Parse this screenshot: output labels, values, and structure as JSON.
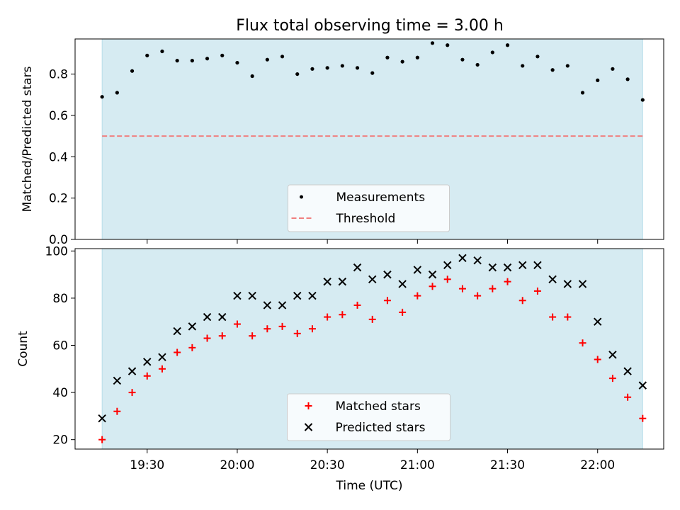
{
  "title": "Flux total observing time = 3.00 h",
  "colors": {
    "observing_band": "#add8e6",
    "threshold": "#f08080",
    "measurements": "#000000",
    "matched": "#ff0000",
    "predicted": "#000000"
  },
  "chart_data": [
    {
      "type": "scatter",
      "ylabel": "Matched/Predicted stars",
      "ylim": [
        0,
        0.97
      ],
      "yticks": [
        "0.0",
        "0.2",
        "0.4",
        "0.6",
        "0.8"
      ],
      "legend_position": "lower-center",
      "threshold": {
        "name": "Threshold",
        "value": 0.5
      },
      "series": [
        {
          "name": "Measurements",
          "marker": "dot",
          "values": [
            0.69,
            0.71,
            0.815,
            0.89,
            0.91,
            0.865,
            0.865,
            0.875,
            0.89,
            0.855,
            0.79,
            0.87,
            0.885,
            0.8,
            0.825,
            0.83,
            0.84,
            0.83,
            0.805,
            0.88,
            0.86,
            0.88,
            0.95,
            0.94,
            0.87,
            0.845,
            0.905,
            0.94,
            0.84,
            0.885,
            0.82,
            0.84,
            0.71,
            0.77,
            0.825,
            0.775,
            0.675
          ]
        }
      ]
    },
    {
      "type": "scatter",
      "ylabel": "Count",
      "xlabel": "Time (UTC)",
      "ylim": [
        16,
        101
      ],
      "yticks": [
        "20",
        "40",
        "60",
        "80",
        "100"
      ],
      "xticks": [
        "19:30",
        "20:00",
        "20:30",
        "21:00",
        "21:30",
        "22:00"
      ],
      "legend_position": "lower-center",
      "series": [
        {
          "name": "Matched stars",
          "marker": "plus",
          "values": [
            20,
            32,
            40,
            47,
            50,
            57,
            59,
            63,
            64,
            69,
            64,
            67,
            68,
            65,
            67,
            72,
            73,
            77,
            71,
            79,
            74,
            81,
            85,
            88,
            84,
            81,
            84,
            87,
            79,
            83,
            72,
            72,
            61,
            54,
            46,
            38,
            29
          ]
        },
        {
          "name": "Predicted stars",
          "marker": "x",
          "values": [
            29,
            45,
            49,
            53,
            55,
            66,
            68,
            72,
            72,
            81,
            81,
            77,
            77,
            81,
            81,
            87,
            87,
            93,
            88,
            90,
            86,
            92,
            90,
            94,
            97,
            96,
            93,
            93,
            94,
            94,
            88,
            86,
            86,
            70,
            56,
            49,
            43
          ]
        }
      ]
    }
  ],
  "time_axis": {
    "start": "19:15",
    "step_minutes": 5,
    "xlim": [
      "19:06",
      "22:22"
    ],
    "observing_window": [
      "19:15",
      "22:15"
    ]
  }
}
